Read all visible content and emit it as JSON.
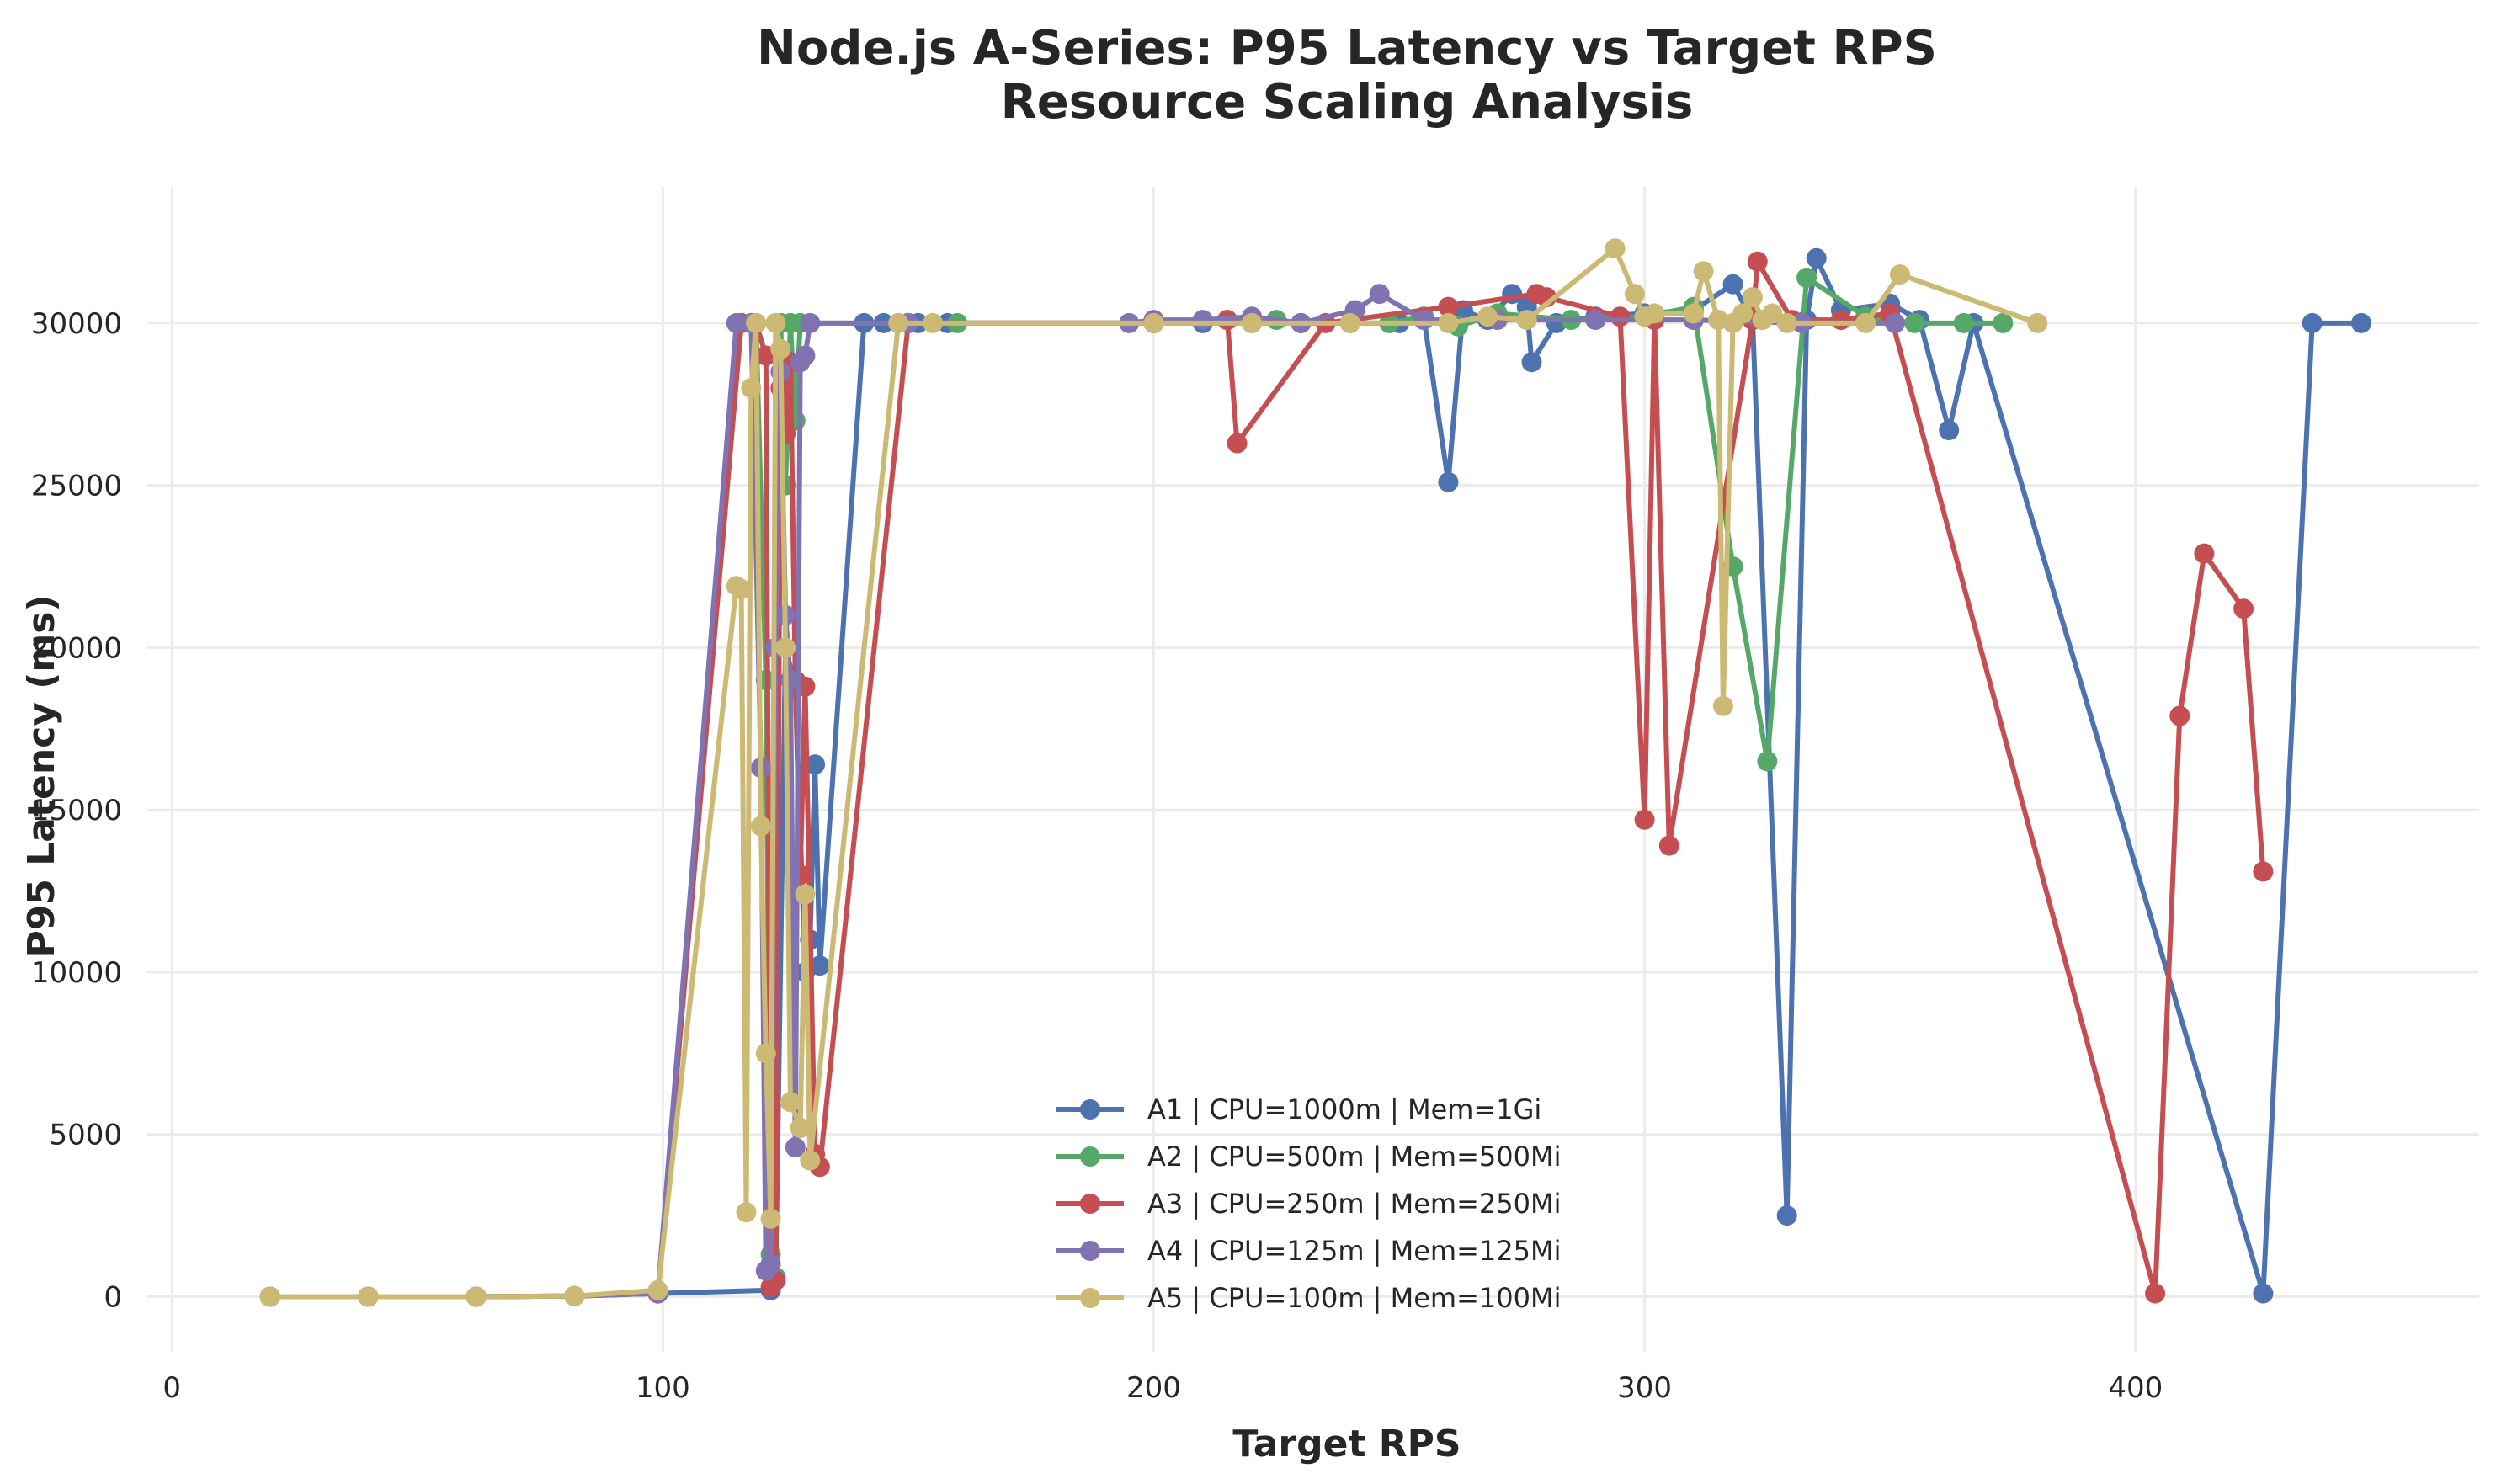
{
  "chart_data": {
    "type": "line",
    "title": "Node.js A-Series: P95 Latency vs Target RPS",
    "subtitle": "Resource Scaling Analysis",
    "xlabel": "Target RPS",
    "ylabel": "P95 Latency (ms)",
    "xlim": [
      -5,
      470
    ],
    "ylim": [
      -1700,
      34200
    ],
    "xticks": [
      0,
      100,
      200,
      300,
      400
    ],
    "yticks": [
      0,
      5000,
      10000,
      15000,
      20000,
      25000,
      30000
    ],
    "grid": true,
    "legend_position": "bottom-center",
    "series": [
      {
        "name": "A1 | CPU=1000m | Mem=1Gi",
        "color": "#4c72b0",
        "x": [
          20,
          40,
          62,
          82,
          99,
          122,
          123,
          125,
          127,
          129,
          130,
          131,
          132,
          141,
          145,
          148,
          152,
          158,
          200,
          210,
          220,
          230,
          250,
          255,
          260,
          263,
          268,
          273,
          276,
          277,
          282,
          290,
          300,
          310,
          318,
          322,
          329,
          333,
          335,
          340,
          350,
          356,
          362,
          367,
          426,
          436,
          446
        ],
        "y": [
          0,
          0,
          0,
          20,
          100,
          200,
          600,
          20000,
          18800,
          10000,
          11000,
          16400,
          10200,
          30000,
          30000,
          30000,
          30000,
          30000,
          30000,
          30000,
          30000,
          30000,
          30000,
          30200,
          25100,
          30400,
          30100,
          30900,
          30500,
          28800,
          30000,
          30200,
          30300,
          30400,
          31200,
          30100,
          2500,
          30100,
          32000,
          30400,
          30600,
          30100,
          26700,
          30000,
          100,
          30000,
          30000
        ]
      },
      {
        "name": "A2 | CPU=500m | Mem=500Mi",
        "color": "#55a868",
        "x": [
          20,
          40,
          62,
          82,
          99,
          116,
          119,
          121,
          122,
          123,
          124,
          125,
          126,
          127,
          128,
          150,
          160,
          200,
          215,
          225,
          230,
          240,
          248,
          255,
          262,
          270,
          285,
          300,
          310,
          318,
          325,
          333,
          345,
          355,
          365,
          373
        ],
        "y": [
          0,
          0,
          0,
          20,
          100,
          30000,
          30000,
          19000,
          1300,
          600,
          30000,
          25000,
          30000,
          27000,
          30000,
          30000,
          30000,
          30000,
          30100,
          30100,
          30000,
          30000,
          30000,
          30200,
          29900,
          30300,
          30100,
          30200,
          30500,
          22500,
          16500,
          31400,
          30200,
          30000,
          30000,
          30000
        ]
      },
      {
        "name": "A3 | CPU=250m | Mem=250Mi",
        "color": "#c44e52",
        "x": [
          20,
          40,
          62,
          82,
          99,
          116,
          119,
          121,
          122,
          123,
          124,
          125,
          126,
          127,
          128,
          129,
          131,
          132,
          150,
          200,
          215,
          217,
          235,
          260,
          278,
          280,
          295,
          300,
          302,
          305,
          322,
          323,
          330,
          340,
          350,
          404,
          409,
          414,
          422,
          426
        ],
        "y": [
          0,
          0,
          0,
          20,
          100,
          30000,
          30000,
          29000,
          300,
          500,
          28000,
          26600,
          28800,
          19000,
          13000,
          18800,
          4400,
          4000,
          30000,
          30000,
          30100,
          26300,
          30000,
          30500,
          30900,
          30800,
          30200,
          14700,
          30100,
          13900,
          30100,
          31900,
          30100,
          30100,
          30300,
          100,
          17900,
          22900,
          21200,
          13100
        ]
      },
      {
        "name": "A4 | CPU=125m | Mem=125Mi",
        "color": "#8172b2",
        "x": [
          20,
          40,
          62,
          82,
          99,
          115,
          118,
          120,
          121,
          122,
          123,
          124,
          125,
          126,
          127,
          128,
          129,
          130,
          150,
          195,
          200,
          210,
          220,
          230,
          241,
          246,
          255,
          270,
          290,
          310,
          332,
          351
        ],
        "y": [
          0,
          0,
          0,
          20,
          100,
          30000,
          30000,
          16300,
          800,
          1000,
          20000,
          28500,
          21000,
          19000,
          4600,
          28800,
          29000,
          30000,
          30000,
          30000,
          30100,
          30100,
          30200,
          30000,
          30400,
          30900,
          30100,
          30100,
          30100,
          30100,
          30000,
          30000
        ]
      },
      {
        "name": "A5 | CPU=100m | Mem=100Mi",
        "color": "#ccb974",
        "x": [
          20,
          40,
          62,
          82,
          99,
          115,
          116,
          117,
          118,
          119,
          120,
          121,
          122,
          123,
          124,
          125,
          126,
          128,
          129,
          130,
          148,
          155,
          200,
          220,
          240,
          260,
          268,
          276,
          294,
          298,
          300,
          302,
          310,
          312,
          315,
          316,
          318,
          320,
          322,
          324,
          326,
          329,
          345,
          352,
          380
        ],
        "y": [
          0,
          0,
          0,
          20,
          200,
          21900,
          21800,
          2600,
          28000,
          30000,
          14500,
          7500,
          2400,
          30000,
          29200,
          20000,
          6000,
          5200,
          12400,
          4200,
          30000,
          30000,
          30000,
          30000,
          30000,
          30000,
          30200,
          30100,
          32300,
          30900,
          30200,
          30300,
          30300,
          31600,
          30100,
          18200,
          30000,
          30300,
          30800,
          30100,
          30300,
          30000,
          30000,
          31500,
          30000
        ]
      }
    ]
  }
}
